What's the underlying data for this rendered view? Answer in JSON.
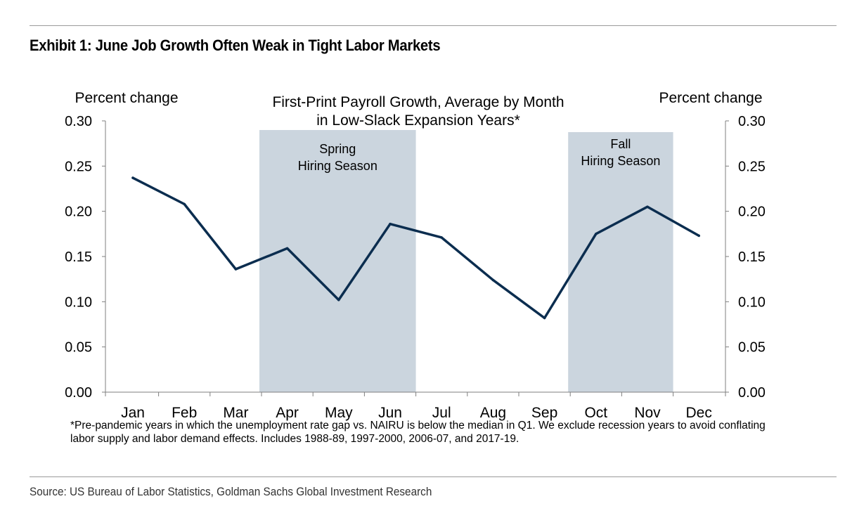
{
  "exhibit_title": "Exhibit 1: June Job Growth Often Weak in Tight Labor Markets",
  "source": "Source: US Bureau of Labor Statistics, Goldman Sachs Global Investment Research",
  "footnote": "*Pre-pandemic years in which the unemployment rate gap vs. NAIRU is below the median in Q1. We exclude recession years to avoid conflating labor supply and labor demand effects. Includes 1988-89, 1997-2000, 2006-07, and 2017-19.",
  "chart_data": {
    "type": "line",
    "title_lines": [
      "First-Print Payroll Growth, Average by Month",
      "in Low-Slack Expansion Years*"
    ],
    "ylabel_left": "Percent change",
    "ylabel_right": "Percent change",
    "categories": [
      "Jan",
      "Feb",
      "Mar",
      "Apr",
      "May",
      "Jun",
      "Jul",
      "Aug",
      "Sep",
      "Oct",
      "Nov",
      "Dec"
    ],
    "series": [
      {
        "values": [
          0.237,
          0.208,
          0.136,
          0.159,
          0.102,
          0.186,
          0.171,
          0.124,
          0.082,
          0.175,
          0.205,
          0.173
        ],
        "color": "#0b2d4f"
      }
    ],
    "ylim": [
      0,
      0.3
    ],
    "yticks": [
      "0.00",
      "0.05",
      "0.10",
      "0.15",
      "0.20",
      "0.25",
      "0.30"
    ],
    "shaded_regions": [
      {
        "from": "Mar",
        "to": "Jun",
        "label_lines": [
          "Spring",
          "Hiring Season"
        ],
        "color": "#cbd5de"
      },
      {
        "from": "Sep",
        "to": "Nov",
        "label_lines": [
          "Fall",
          "Hiring Season"
        ],
        "color": "#cbd5de"
      }
    ],
    "grid": false
  }
}
